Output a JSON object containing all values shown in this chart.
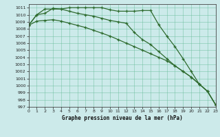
{
  "xlabel": "Graphe pression niveau de la mer (hPa)",
  "xlim": [
    0,
    23
  ],
  "ylim": [
    997,
    1011.5
  ],
  "yticks": [
    997,
    998,
    999,
    1000,
    1001,
    1002,
    1003,
    1004,
    1005,
    1006,
    1007,
    1008,
    1009,
    1010,
    1011
  ],
  "xticks": [
    0,
    1,
    2,
    3,
    4,
    5,
    6,
    7,
    8,
    9,
    10,
    11,
    12,
    13,
    14,
    15,
    16,
    17,
    18,
    19,
    20,
    21,
    22,
    23
  ],
  "line_color": "#2d6a2d",
  "bg_color": "#cceaea",
  "grid_color": "#66bb99",
  "line1": [
    1008.5,
    1010.0,
    1010.8,
    1010.8,
    1010.8,
    1011.0,
    1011.0,
    1011.0,
    1011.0,
    1011.0,
    1010.7,
    1010.5,
    1010.5,
    1010.5,
    1010.6,
    1010.6,
    1008.6,
    1007.0,
    1005.5,
    1003.8,
    1002.0,
    1000.2,
    999.2,
    997.3
  ],
  "line2": [
    1008.5,
    1010.0,
    1010.2,
    1010.9,
    1010.8,
    1010.5,
    1010.2,
    1010.0,
    1009.8,
    1009.5,
    1009.2,
    1009.0,
    1008.8,
    1007.5,
    1006.5,
    1005.8,
    1004.8,
    1003.8,
    1002.8,
    1002.0,
    1001.2,
    1000.2,
    999.2,
    997.3
  ],
  "line3": [
    1008.5,
    1009.1,
    1009.2,
    1009.3,
    1009.1,
    1008.8,
    1008.5,
    1008.2,
    1007.8,
    1007.4,
    1007.0,
    1006.5,
    1006.0,
    1005.5,
    1005.0,
    1004.5,
    1004.0,
    1003.5,
    1002.8,
    1002.0,
    1001.2,
    1000.2,
    999.2,
    997.3
  ]
}
